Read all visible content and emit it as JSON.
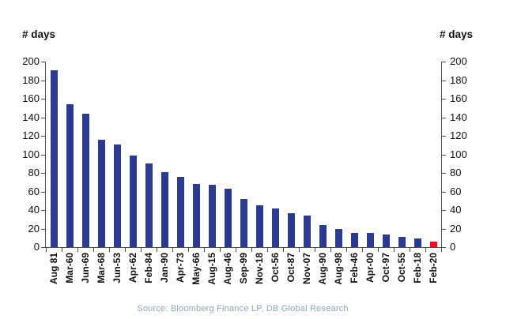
{
  "chart_data": {
    "type": "bar",
    "title": "",
    "ylabel_left": "# days",
    "ylabel_right": "# days",
    "source": "Source: Bloomberg Finance LP, DB Global Research",
    "categories": [
      "Aug 81",
      "Mar-60",
      "Jun-69",
      "Mar-68",
      "Jun-53",
      "Apr-62",
      "Feb-84",
      "Jan-90",
      "Apr-73",
      "May-66",
      "Aug-15",
      "Aug-46",
      "Sep-99",
      "Nov-18",
      "Oct-56",
      "Oct-87",
      "Nov-07",
      "Aug-90",
      "Aug-98",
      "Feb-46",
      "Apr-00",
      "Oct-97",
      "Oct-55",
      "Feb-18",
      "Feb-20"
    ],
    "values": [
      191,
      154,
      144,
      116,
      111,
      99,
      90,
      81,
      76,
      68,
      67,
      63,
      52,
      45,
      42,
      37,
      34,
      24,
      20,
      15,
      15,
      14,
      11,
      9,
      6
    ],
    "ylim": [
      0,
      200
    ],
    "yticks": [
      0,
      20,
      40,
      60,
      80,
      100,
      120,
      140,
      160,
      180,
      200
    ],
    "bar_color": "#2B3A94",
    "highlight_color": "#E1151E",
    "highlight_index": 24,
    "grid": false,
    "legend": "none"
  }
}
